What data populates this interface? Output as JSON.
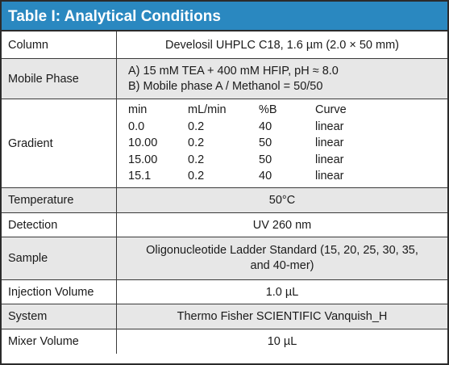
{
  "table": {
    "title": "Table I: Analytical Conditions",
    "column": {
      "label": "Column",
      "value": "Develosil UHPLC C18, 1.6 µm (2.0 × 50 mm)"
    },
    "mobile_phase": {
      "label": "Mobile Phase",
      "line_a": "A) 15 mM TEA + 400 mM HFIP, pH ≈ 8.0",
      "line_b": "B) Mobile phase A / Methanol = 50/50"
    },
    "gradient": {
      "label": "Gradient",
      "headers": [
        "min",
        "mL/min",
        "%B",
        "Curve"
      ],
      "rows": [
        [
          "0.0",
          "0.2",
          "40",
          "linear"
        ],
        [
          "10.00",
          "0.2",
          "50",
          "linear"
        ],
        [
          "15.00",
          "0.2",
          "50",
          "linear"
        ],
        [
          "15.1",
          "0.2",
          "40",
          "linear"
        ]
      ]
    },
    "temperature": {
      "label": "Temperature",
      "value": "50°C"
    },
    "detection": {
      "label": "Detection",
      "value": "UV 260 nm"
    },
    "sample": {
      "label": "Sample",
      "line_1": "Oligonucleotide Ladder Standard (15, 20, 25, 30, 35,",
      "line_2": "and 40-mer)"
    },
    "injection_volume": {
      "label": "Injection Volume",
      "value": "1.0 µL"
    },
    "system": {
      "label": "System",
      "value": "Thermo Fisher SCIENTIFIC Vanquish_H"
    },
    "mixer_volume": {
      "label": "Mixer Volume",
      "value": "10 µL"
    }
  },
  "colors": {
    "title_bg": "#2a88c0",
    "title_text": "#ffffff",
    "shaded_row": "#e7e7e7",
    "border": "#2b2b2b"
  }
}
